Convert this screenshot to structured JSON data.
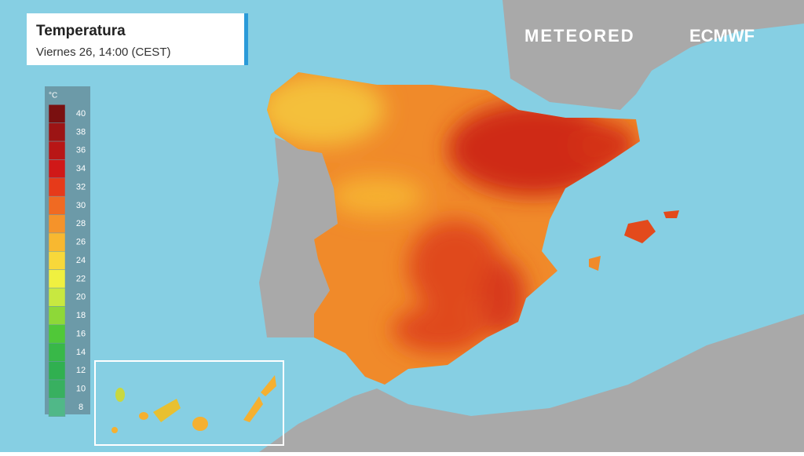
{
  "header": {
    "title": "Temperatura",
    "subtitle": "Viernes 26, 14:00 (CEST)"
  },
  "logos": {
    "brand": "METEORED",
    "partner": "ECMWF"
  },
  "legend": {
    "unit": "°C",
    "items": [
      {
        "label": 40,
        "color": "#7a1010"
      },
      {
        "label": 38,
        "color": "#9c1414"
      },
      {
        "label": 36,
        "color": "#b81616"
      },
      {
        "label": 34,
        "color": "#d01818"
      },
      {
        "label": 32,
        "color": "#e63a1a"
      },
      {
        "label": 30,
        "color": "#f06a22"
      },
      {
        "label": 28,
        "color": "#f5932a"
      },
      {
        "label": 26,
        "color": "#f8b830"
      },
      {
        "label": 24,
        "color": "#f8d83a"
      },
      {
        "label": 22,
        "color": "#f0f040"
      },
      {
        "label": 20,
        "color": "#c8e840"
      },
      {
        "label": 18,
        "color": "#8ed838"
      },
      {
        "label": 16,
        "color": "#50c838"
      },
      {
        "label": 14,
        "color": "#38b848"
      },
      {
        "label": 12,
        "color": "#30b050"
      },
      {
        "label": 10,
        "color": "#38b060"
      },
      {
        "label": 8,
        "color": "#50b888"
      }
    ]
  }
}
